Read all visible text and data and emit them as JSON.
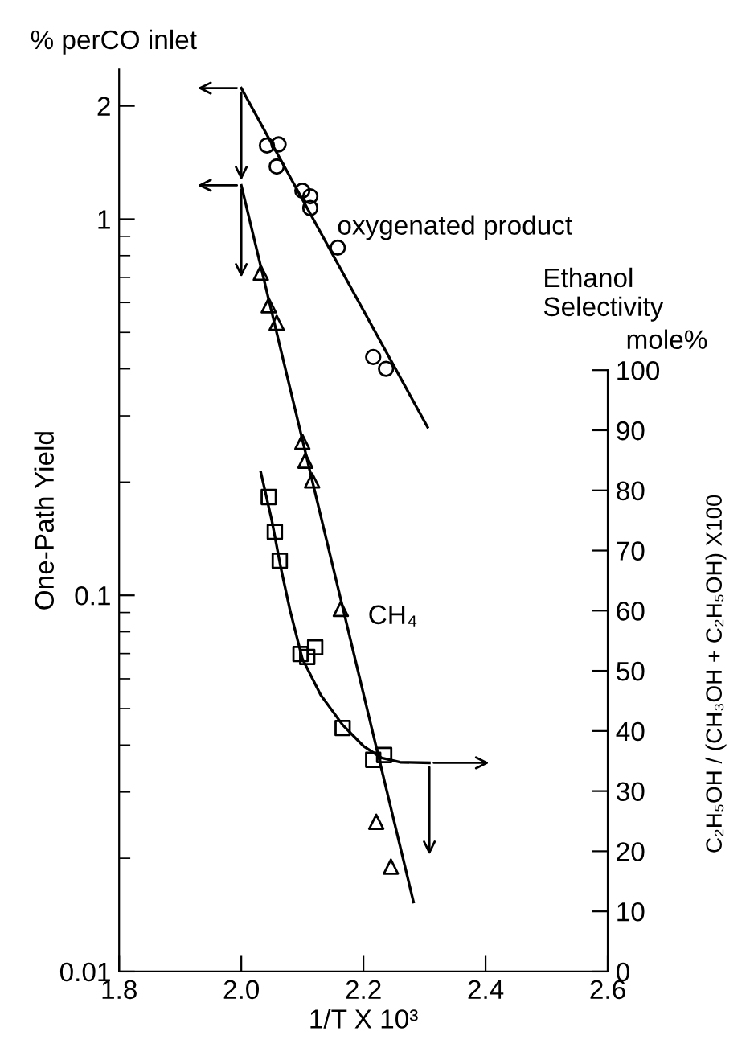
{
  "chart_data": {
    "type": "scatter",
    "ylabel": "One-Path Yield",
    "xlabel": "1/T X 10³",
    "y2label": "C₂H₅OH / (CH₃OH + C₂H₅OH) X100",
    "annotations": [
      "% perCO inlet",
      "Ethanol Selectivity",
      "mole%"
    ],
    "log": "y",
    "xlim": [
      1.8,
      2.6
    ],
    "xticks": [
      1.8,
      {
        "value": 2.0,
        "label": "2.0"
      },
      2.2,
      2.4,
      2.6
    ],
    "ylim": [
      0.01,
      2.5
    ],
    "yticks": [
      0.01,
      0.1,
      1,
      2
    ],
    "y2lim": [
      0,
      150
    ],
    "y2ticks": [
      0,
      10,
      20,
      30,
      40,
      50,
      60,
      70,
      80,
      90,
      100
    ],
    "grid": false,
    "legend": false,
    "series": [
      {
        "name": "oxygenated product",
        "type": "scatter",
        "marker": "circle",
        "color": "#000000",
        "x": [
          2.042,
          2.061,
          2.058,
          2.1,
          2.113,
          2.113,
          2.158,
          2.216,
          2.237
        ],
        "values": [
          1.57,
          1.58,
          1.38,
          1.19,
          1.15,
          1.07,
          0.84,
          0.43,
          0.4
        ]
      },
      {
        "type": "line",
        "marker": "none",
        "line_style": "solid",
        "color": "#000000",
        "x": [
          2.0,
          2.305
        ],
        "values": [
          2.23,
          0.28
        ]
      },
      {
        "name": "CH₄",
        "type": "scatter",
        "marker": "triangle",
        "color": "#000000",
        "x": [
          2.032,
          2.045,
          2.058,
          2.1,
          2.105,
          2.116,
          2.163,
          2.221,
          2.245
        ],
        "values": [
          0.72,
          0.59,
          0.53,
          0.256,
          0.228,
          0.202,
          0.092,
          0.025,
          0.019
        ]
      },
      {
        "type": "line",
        "marker": "none",
        "line_style": "solid",
        "color": "#000000",
        "x": [
          2.0,
          2.282
        ],
        "values": [
          1.23,
          0.0153
        ]
      },
      {
        "type": "scatter",
        "axis": "y2",
        "marker": "square",
        "color": "#000000",
        "x": [
          2.045,
          2.055,
          2.063,
          2.097,
          2.108,
          2.121,
          2.166,
          2.216,
          2.234
        ],
        "values": [
          78.9,
          73.1,
          68.3,
          52.8,
          52.3,
          53.9,
          40.5,
          35.2,
          36.0
        ]
      },
      {
        "type": "line",
        "axis": "y2",
        "marker": "none",
        "line_style": "solid",
        "color": "#000000",
        "x": [
          2.032,
          2.05,
          2.065,
          2.08,
          2.1,
          2.13,
          2.166,
          2.2,
          2.23,
          2.26,
          2.308
        ],
        "values": [
          83,
          75,
          67,
          60,
          52,
          46,
          41,
          37.5,
          35.5,
          34.8,
          34.7
        ]
      }
    ]
  }
}
